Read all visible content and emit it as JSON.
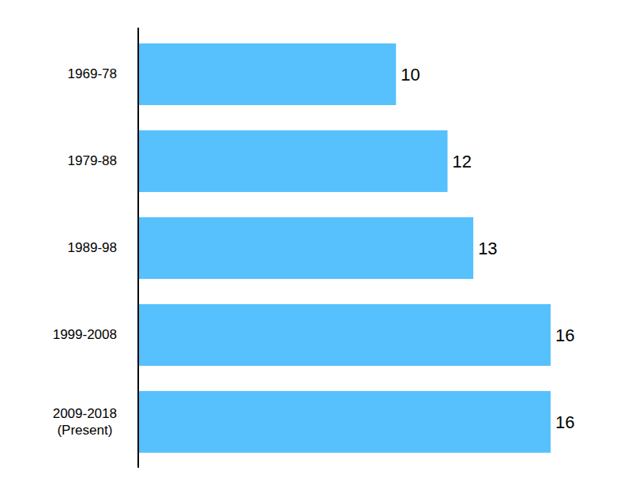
{
  "chart_data": {
    "type": "bar",
    "orientation": "horizontal",
    "categories": [
      "1969-78",
      "1979-88",
      "1989-98",
      "1999-2008",
      "2009-2018\n(Present)"
    ],
    "values": [
      10,
      12,
      13,
      16,
      16
    ],
    "color": "#56c1fd",
    "xlim": [
      0,
      16
    ],
    "data_labels": true,
    "tick_labels": "y",
    "grid": false
  }
}
